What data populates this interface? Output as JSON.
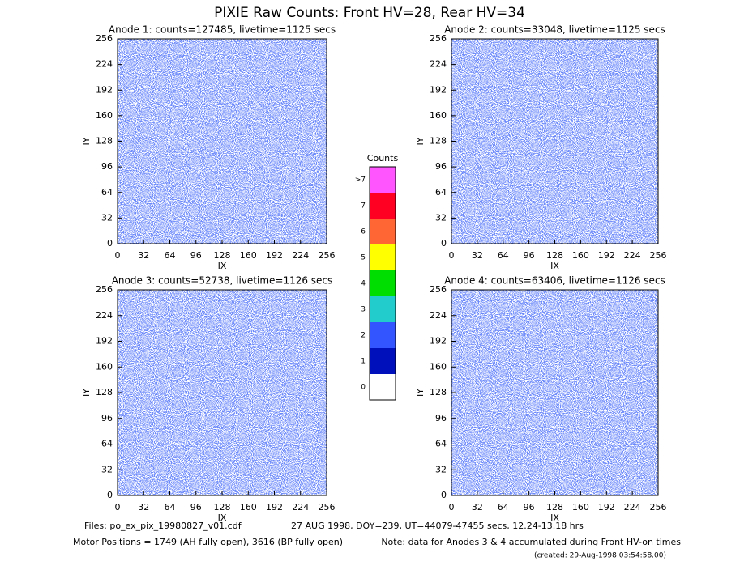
{
  "title": "PIXIE Raw Counts:  Front HV=28, Rear HV=34",
  "chart_data": [
    {
      "type": "heatmap",
      "title": "Anode 1: counts=127485, livetime=1125 secs",
      "xlabel": "IX",
      "ylabel": "IY",
      "xlim": [
        0,
        256
      ],
      "ylim": [
        0,
        256
      ],
      "xticks": [
        0,
        32,
        64,
        96,
        128,
        160,
        192,
        224,
        256
      ],
      "yticks": [
        0,
        32,
        64,
        96,
        128,
        160,
        192,
        224,
        256
      ]
    },
    {
      "type": "heatmap",
      "title": "Anode 2: counts=33048, livetime=1125 secs",
      "xlabel": "IX",
      "ylabel": "IY",
      "xlim": [
        0,
        256
      ],
      "ylim": [
        0,
        256
      ],
      "xticks": [
        0,
        32,
        64,
        96,
        128,
        160,
        192,
        224,
        256
      ],
      "yticks": [
        0,
        32,
        64,
        96,
        128,
        160,
        192,
        224,
        256
      ]
    },
    {
      "type": "heatmap",
      "title": "Anode 3: counts=52738, livetime=1126 secs",
      "xlabel": "IX",
      "ylabel": "IY",
      "xlim": [
        0,
        256
      ],
      "ylim": [
        0,
        256
      ],
      "xticks": [
        0,
        32,
        64,
        96,
        128,
        160,
        192,
        224,
        256
      ],
      "yticks": [
        0,
        32,
        64,
        96,
        128,
        160,
        192,
        224,
        256
      ]
    },
    {
      "type": "heatmap",
      "title": "Anode 4: counts=63406, livetime=1126 secs",
      "xlabel": "IX",
      "ylabel": "IY",
      "xlim": [
        0,
        256
      ],
      "ylim": [
        0,
        256
      ],
      "xticks": [
        0,
        32,
        64,
        96,
        128,
        160,
        192,
        224,
        256
      ],
      "yticks": [
        0,
        32,
        64,
        96,
        128,
        160,
        192,
        224,
        256
      ]
    }
  ],
  "colorbar": {
    "title": "Counts",
    "labels": [
      ">7",
      "7",
      "6",
      "5",
      "4",
      "3",
      "2",
      "1",
      "0"
    ],
    "colors": [
      "#ff55ff",
      "#ff0022",
      "#ff6633",
      "#ffff00",
      "#00dd00",
      "#22cccc",
      "#3355ff",
      "#0011bb",
      "#ffffff"
    ]
  },
  "footer": {
    "files": "Files: po_ex_pix_19980827_v01.cdf",
    "date": "27 AUG 1998, DOY=239, UT=44079-47455 secs, 12.24-13.18 hrs",
    "motor": "Motor Positions = 1749 (AH fully open), 3616 (BP fully open)",
    "note": "Note: data for Anodes 3 & 4 accumulated during Front HV-on times",
    "created": "(created: 29-Aug-1998 03:54:58.00)"
  }
}
